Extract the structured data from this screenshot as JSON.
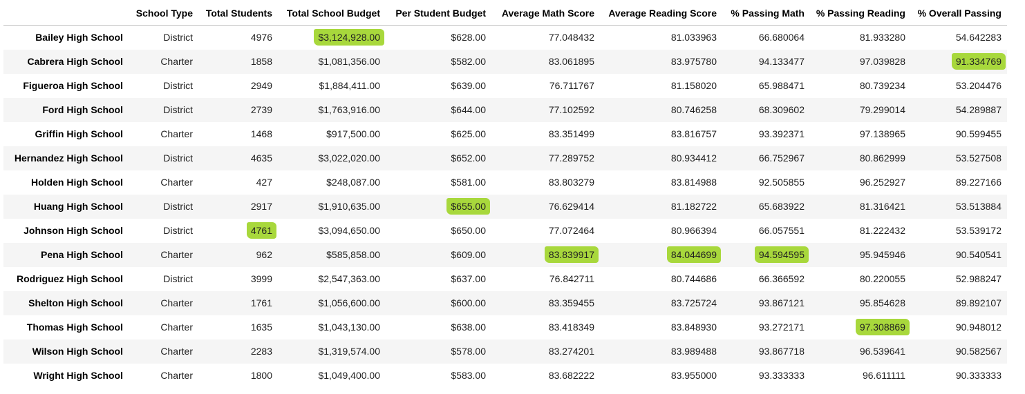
{
  "table": {
    "columns": [
      "School Type",
      "Total Students",
      "Total School Budget",
      "Per Student Budget",
      "Average Math Score",
      "Average Reading Score",
      "% Passing Math",
      "% Passing Reading",
      "% Overall Passing"
    ],
    "rows": [
      [
        "Bailey High School",
        "District",
        "4976",
        "$3,124,928.00",
        "$628.00",
        "77.048432",
        "81.033963",
        "66.680064",
        "81.933280",
        "54.642283"
      ],
      [
        "Cabrera High School",
        "Charter",
        "1858",
        "$1,081,356.00",
        "$582.00",
        "83.061895",
        "83.975780",
        "94.133477",
        "97.039828",
        "91.334769"
      ],
      [
        "Figueroa High School",
        "District",
        "2949",
        "$1,884,411.00",
        "$639.00",
        "76.711767",
        "81.158020",
        "65.988471",
        "80.739234",
        "53.204476"
      ],
      [
        "Ford High School",
        "District",
        "2739",
        "$1,763,916.00",
        "$644.00",
        "77.102592",
        "80.746258",
        "68.309602",
        "79.299014",
        "54.289887"
      ],
      [
        "Griffin High School",
        "Charter",
        "1468",
        "$917,500.00",
        "$625.00",
        "83.351499",
        "83.816757",
        "93.392371",
        "97.138965",
        "90.599455"
      ],
      [
        "Hernandez High School",
        "District",
        "4635",
        "$3,022,020.00",
        "$652.00",
        "77.289752",
        "80.934412",
        "66.752967",
        "80.862999",
        "53.527508"
      ],
      [
        "Holden High School",
        "Charter",
        "427",
        "$248,087.00",
        "$581.00",
        "83.803279",
        "83.814988",
        "92.505855",
        "96.252927",
        "89.227166"
      ],
      [
        "Huang High School",
        "District",
        "2917",
        "$1,910,635.00",
        "$655.00",
        "76.629414",
        "81.182722",
        "65.683922",
        "81.316421",
        "53.513884"
      ],
      [
        "Johnson High School",
        "District",
        "4761",
        "$3,094,650.00",
        "$650.00",
        "77.072464",
        "80.966394",
        "66.057551",
        "81.222432",
        "53.539172"
      ],
      [
        "Pena High School",
        "Charter",
        "962",
        "$585,858.00",
        "$609.00",
        "83.839917",
        "84.044699",
        "94.594595",
        "95.945946",
        "90.540541"
      ],
      [
        "Rodriguez High School",
        "District",
        "3999",
        "$2,547,363.00",
        "$637.00",
        "76.842711",
        "80.744686",
        "66.366592",
        "80.220055",
        "52.988247"
      ],
      [
        "Shelton High School",
        "Charter",
        "1761",
        "$1,056,600.00",
        "$600.00",
        "83.359455",
        "83.725724",
        "93.867121",
        "95.854628",
        "89.892107"
      ],
      [
        "Thomas High School",
        "Charter",
        "1635",
        "$1,043,130.00",
        "$638.00",
        "83.418349",
        "83.848930",
        "93.272171",
        "97.308869",
        "90.948012"
      ],
      [
        "Wilson High School",
        "Charter",
        "2283",
        "$1,319,574.00",
        "$578.00",
        "83.274201",
        "83.989488",
        "93.867718",
        "96.539641",
        "90.582567"
      ],
      [
        "Wright High School",
        "Charter",
        "1800",
        "$1,049,400.00",
        "$583.00",
        "83.682222",
        "83.955000",
        "93.333333",
        "96.611111",
        "90.333333"
      ]
    ]
  }
}
